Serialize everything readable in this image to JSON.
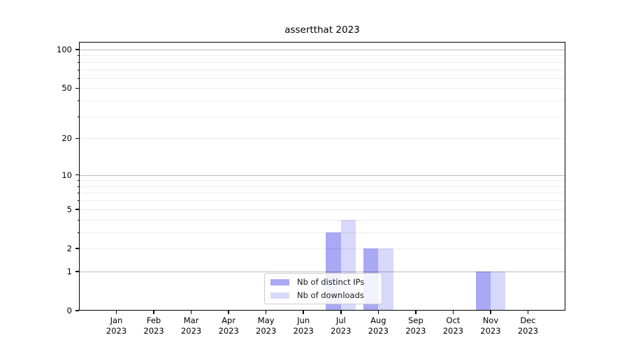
{
  "chart_data": {
    "type": "bar",
    "title": "assertthat 2023",
    "categories": [
      "Jan",
      "Feb",
      "Mar",
      "Apr",
      "May",
      "Jun",
      "Jul",
      "Aug",
      "Sep",
      "Oct",
      "Nov",
      "Dec"
    ],
    "x_sublabel": "2023",
    "series": [
      {
        "name": "Nb of distinct IPs",
        "color": "#a8a8f4",
        "values": [
          0,
          0,
          0,
          0,
          0,
          0,
          3,
          2,
          0,
          0,
          1,
          0
        ]
      },
      {
        "name": "Nb of downloads",
        "color": "#d8d8fa",
        "values": [
          0,
          0,
          0,
          0,
          0,
          0,
          4,
          2,
          0,
          0,
          1,
          0
        ]
      }
    ],
    "yscale": "log1p",
    "ylim": [
      0,
      114.7
    ],
    "yticks": [
      {
        "v": 100,
        "label": "100"
      },
      {
        "v": 50,
        "label": "50"
      },
      {
        "v": 20,
        "label": "20"
      },
      {
        "v": 10,
        "label": "10"
      },
      {
        "v": 5,
        "label": "5"
      },
      {
        "v": 2,
        "label": "2"
      },
      {
        "v": 1,
        "label": "1"
      },
      {
        "v": 0,
        "label": "0"
      }
    ],
    "major_gridlines": [
      1,
      10,
      100
    ],
    "minor_gridlines": [
      2,
      3,
      4,
      5,
      6,
      7,
      8,
      9,
      20,
      30,
      40,
      50,
      60,
      70,
      80,
      90
    ],
    "grid": true,
    "legend_position": "lower center"
  },
  "style": {
    "background": "#ffffff",
    "axis_color": "#000000",
    "text_color": "#000000",
    "major_grid_color": "rgba(0,0,0,0.26)",
    "minor_grid_color": "rgba(0,0,0,0.075)",
    "legend_border_color": "#cccccc"
  }
}
